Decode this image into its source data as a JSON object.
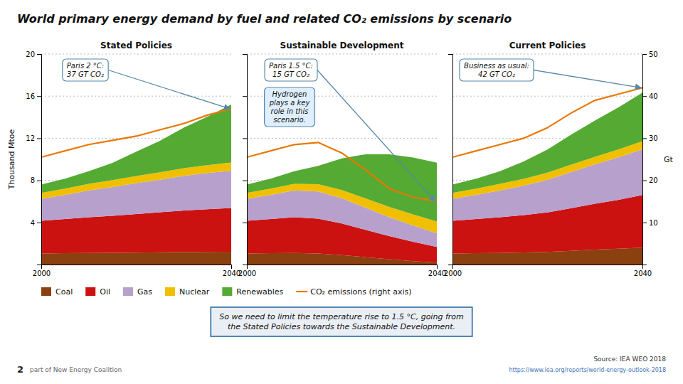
{
  "title": "World primary energy demand by fuel and related CO₂ emissions by scenario",
  "annotations": [
    "So we need to limit the temperature rise to 1.5 °C, going from\nthe Stated Policies towards the Sustainable Development.",
    "2",
    "part of New Energy Coalition",
    "Source: IEA WEO 2018",
    "https://www.iea.org/reports/world-energy-outlook-2018"
  ],
  "chart_data": [
    {
      "type": "area",
      "stacked": true,
      "grid": true,
      "title": "Stated Policies",
      "ylabel": "Thousand Mtoe",
      "x": [
        2000,
        2005,
        2010,
        2015,
        2020,
        2025,
        2030,
        2035,
        2040
      ],
      "xlim": [
        2000,
        2040
      ],
      "xticks": [
        2000,
        2040
      ],
      "ylim": [
        0,
        20
      ],
      "yticks": [
        4,
        8,
        12,
        16,
        20
      ],
      "y2lim": [
        0,
        50
      ],
      "series": [
        {
          "name": "Coal",
          "color": "#8B4010",
          "values": [
            1.05,
            1.08,
            1.1,
            1.12,
            1.14,
            1.16,
            1.18,
            1.2,
            1.22
          ]
        },
        {
          "name": "Oil",
          "color": "#CC1111",
          "values": [
            3.1,
            3.25,
            3.4,
            3.5,
            3.65,
            3.8,
            3.95,
            4.05,
            4.15
          ]
        },
        {
          "name": "Gas",
          "color": "#B8A0CC",
          "values": [
            2.1,
            2.3,
            2.55,
            2.75,
            2.95,
            3.1,
            3.3,
            3.45,
            3.55
          ]
        },
        {
          "name": "Nuclear",
          "color": "#F0C000",
          "values": [
            0.55,
            0.58,
            0.62,
            0.65,
            0.68,
            0.7,
            0.72,
            0.75,
            0.78
          ]
        },
        {
          "name": "Renewables",
          "color": "#55AA33",
          "values": [
            0.8,
            0.95,
            1.2,
            1.65,
            2.3,
            3.0,
            3.85,
            4.6,
            5.5
          ]
        },
        {
          "name": "CO₂ emissions (right axis)",
          "type": "line",
          "axis": "y2",
          "color": "#E87800",
          "values": [
            25.5,
            27.0,
            28.5,
            29.5,
            30.5,
            32.0,
            33.5,
            35.5,
            37.0
          ]
        }
      ],
      "annotations": [
        "Paris 2 °C:\n37 GT CO₂"
      ]
    },
    {
      "type": "area",
      "stacked": true,
      "grid": true,
      "title": "Sustainable Development",
      "tick_labels": "x",
      "x": [
        2000,
        2005,
        2010,
        2015,
        2020,
        2025,
        2030,
        2035,
        2040
      ],
      "xlim": [
        2000,
        2040
      ],
      "xticks": [
        2000,
        2040
      ],
      "ylim": [
        0,
        20
      ],
      "yticks": [
        4,
        8,
        12,
        16,
        20
      ],
      "y2lim": [
        0,
        50
      ],
      "series": [
        {
          "color": "#8B4010",
          "values": [
            1.05,
            1.08,
            1.1,
            1.05,
            0.9,
            0.7,
            0.5,
            0.32,
            0.18
          ]
        },
        {
          "color": "#CC1111",
          "values": [
            3.1,
            3.25,
            3.4,
            3.3,
            3.0,
            2.6,
            2.2,
            1.85,
            1.5
          ]
        },
        {
          "color": "#B8A0CC",
          "values": [
            2.1,
            2.3,
            2.55,
            2.6,
            2.4,
            2.1,
            1.8,
            1.55,
            1.3
          ]
        },
        {
          "color": "#F0C000",
          "values": [
            0.55,
            0.58,
            0.62,
            0.68,
            0.78,
            0.88,
            0.98,
            1.05,
            1.1
          ]
        },
        {
          "color": "#55AA33",
          "values": [
            0.8,
            0.95,
            1.2,
            1.75,
            3.0,
            4.2,
            5.0,
            5.4,
            5.6
          ]
        },
        {
          "type": "line",
          "axis": "y2",
          "color": "#E87800",
          "values": [
            25.5,
            27.0,
            28.5,
            29.0,
            26.5,
            22.5,
            18.0,
            16.0,
            15.0
          ]
        }
      ],
      "annotations": [
        "Paris 1.5 °C:\n15 GT CO₂",
        "Hydrogen\nplays a key\nrole in this\nscenario."
      ]
    },
    {
      "type": "area",
      "stacked": true,
      "grid": true,
      "title": "Current Policies",
      "y2label": "Gt",
      "x": [
        2000,
        2005,
        2010,
        2015,
        2020,
        2025,
        2030,
        2035,
        2040
      ],
      "xlim": [
        2000,
        2040
      ],
      "xticks": [
        2000,
        2040
      ],
      "ylim": [
        0,
        20
      ],
      "y2lim": [
        0,
        50
      ],
      "y2ticks": [
        10,
        20,
        30,
        40,
        50
      ],
      "series": [
        {
          "color": "#8B4010",
          "values": [
            1.05,
            1.08,
            1.1,
            1.15,
            1.2,
            1.3,
            1.42,
            1.5,
            1.6
          ]
        },
        {
          "color": "#CC1111",
          "values": [
            3.1,
            3.25,
            3.4,
            3.55,
            3.75,
            4.05,
            4.35,
            4.65,
            5.0
          ]
        },
        {
          "color": "#B8A0CC",
          "values": [
            2.1,
            2.3,
            2.55,
            2.8,
            3.1,
            3.45,
            3.75,
            4.05,
            4.35
          ]
        },
        {
          "color": "#F0C000",
          "values": [
            0.55,
            0.58,
            0.62,
            0.65,
            0.68,
            0.7,
            0.72,
            0.75,
            0.78
          ]
        },
        {
          "color": "#55AA33",
          "values": [
            0.8,
            0.95,
            1.2,
            1.65,
            2.2,
            2.85,
            3.45,
            4.0,
            4.6
          ]
        },
        {
          "type": "line",
          "axis": "y2",
          "color": "#E87800",
          "values": [
            25.5,
            27.0,
            28.5,
            30.0,
            32.5,
            36.0,
            39.0,
            40.5,
            42.0
          ]
        }
      ],
      "annotations": [
        "Business as usual:\n42 GT CO₂"
      ]
    }
  ]
}
